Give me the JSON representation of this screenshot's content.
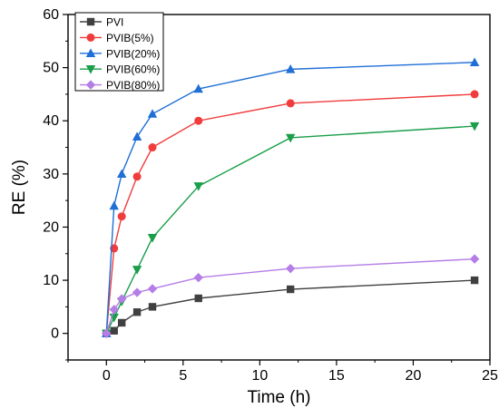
{
  "chart_data": {
    "type": "line",
    "title": "",
    "xlabel": "Time (h)",
    "ylabel": "RE (%)",
    "xlim": [
      -2.5,
      25
    ],
    "ylim": [
      -5,
      60
    ],
    "xticks": [
      0,
      5,
      10,
      15,
      20,
      25
    ],
    "yticks": [
      0,
      10,
      20,
      30,
      40,
      50,
      60
    ],
    "grid": false,
    "legend_position": "top-left",
    "x": [
      0,
      0.5,
      1,
      2,
      3,
      6,
      12,
      24
    ],
    "series": [
      {
        "name": "PVI",
        "color": "#404040",
        "marker": "square",
        "values": [
          0,
          0.5,
          2,
          4,
          5,
          6.6,
          8.3,
          10
        ]
      },
      {
        "name": "PVIB(5%)",
        "color": "#f03c3c",
        "marker": "circle",
        "values": [
          0,
          16,
          22,
          29.5,
          35,
          40,
          43.3,
          45
        ]
      },
      {
        "name": "PVIB(20%)",
        "color": "#1f6fd6",
        "marker": "triangle-up",
        "values": [
          0,
          24,
          30,
          37,
          41.3,
          46,
          49.7,
          51
        ]
      },
      {
        "name": "PVIB(60%)",
        "color": "#1a9e4a",
        "marker": "triangle-down",
        "values": [
          0,
          3,
          6,
          12,
          18,
          27.7,
          36.8,
          39
        ]
      },
      {
        "name": "PVIB(80%)",
        "color": "#b57de6",
        "marker": "diamond",
        "values": [
          0,
          4.5,
          6.5,
          7.7,
          8.4,
          10.5,
          12.2,
          14
        ]
      }
    ]
  }
}
